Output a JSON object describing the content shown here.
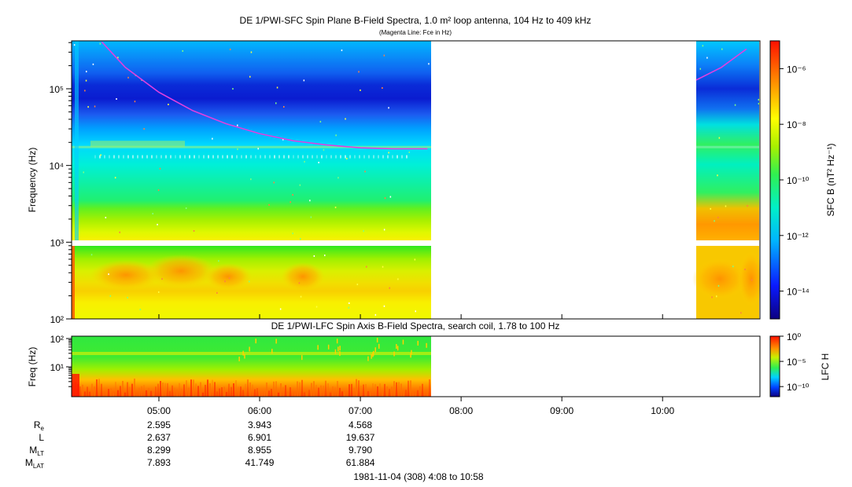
{
  "chart_data": [
    {
      "type": "heatmap",
      "title": "DE 1/PWI-SFC  Spin Plane B-Field Spectra, 1.0 m² loop antenna, 104 Hz to 409 kHz",
      "subtitle": "(Magenta Line: Fce in Hz)",
      "ylabel": "Frequency (Hz)",
      "y_scale": "log",
      "ylim": [
        100,
        409000
      ],
      "y_ticks": [
        {
          "value": 100,
          "label": "10²"
        },
        {
          "value": 1000,
          "label": "10³"
        },
        {
          "value": 10000,
          "label": "10⁴"
        },
        {
          "value": 100000,
          "label": "10⁵"
        }
      ],
      "xlim": [
        "04:08",
        "10:58"
      ],
      "data_gaps": [
        [
          "07:43",
          "10:20"
        ]
      ],
      "colorbar": {
        "label": "SFC B (nT² Hz⁻¹)",
        "scale": "log",
        "range": [
          1e-15,
          1e-05
        ],
        "ticks": [
          {
            "value": 1e-06,
            "label": "10⁻⁶"
          },
          {
            "value": 1e-08,
            "label": "10⁻⁸"
          },
          {
            "value": 1e-10,
            "label": "10⁻¹⁰"
          },
          {
            "value": 1e-12,
            "label": "10⁻¹²"
          },
          {
            "value": 1e-14,
            "label": "10⁻¹⁴"
          }
        ]
      },
      "fce_line": {
        "color": "#e040e0",
        "segments": [
          {
            "x": [
              "04:26",
              "04:40",
              "05:00",
              "05:20",
              "05:40",
              "06:00",
              "06:20",
              "06:40",
              "07:00",
              "07:20",
              "07:40"
            ],
            "y": [
              409000,
              190000,
              90000,
              52000,
              35000,
              26000,
              21000,
              18500,
              17000,
              16500,
              16500
            ]
          },
          {
            "x": [
              "10:20",
              "10:35",
              "10:50"
            ],
            "y": [
              130000,
              190000,
              330000
            ]
          }
        ]
      }
    },
    {
      "type": "heatmap",
      "title": "DE 1/PWI-LFC  Spin Axis B-Field Spectra, search coil, 1.78 to 100 Hz",
      "ylabel": "Freq (Hz)",
      "y_scale": "log",
      "ylim": [
        1.78,
        120
      ],
      "y_ticks": [
        {
          "value": 10,
          "label": "10¹"
        },
        {
          "value": 100,
          "label": "10²"
        }
      ],
      "xlim": [
        "04:08",
        "10:58"
      ],
      "data_end": "07:43",
      "x_ticks": [
        "05:00",
        "06:00",
        "07:00",
        "08:00",
        "09:00",
        "10:00"
      ],
      "colorbar": {
        "label": "LFC H",
        "scale": "log",
        "range": [
          1e-12,
          1.0
        ],
        "ticks": [
          {
            "value": 1.0,
            "label": "10⁰"
          },
          {
            "value": 1e-05,
            "label": "10⁻⁵"
          },
          {
            "value": 1e-10,
            "label": "10⁻¹⁰"
          }
        ]
      }
    }
  ],
  "ephemeris": {
    "labels": [
      {
        "base": "R",
        "sub": "e"
      },
      {
        "base": "L",
        "sub": ""
      },
      {
        "base": "M",
        "sub": "LT"
      },
      {
        "base": "M",
        "sub": "LAT"
      }
    ],
    "times": [
      "05:00",
      "06:00",
      "07:00"
    ],
    "rows": [
      [
        "2.595",
        "3.943",
        "4.568"
      ],
      [
        "2.637",
        "6.901",
        "19.637"
      ],
      [
        "8.299",
        "8.955",
        "9.790"
      ],
      [
        "7.893",
        "41.749",
        "61.884"
      ]
    ]
  },
  "footer": "1981-11-04 (308) 4:08 to 10:58"
}
